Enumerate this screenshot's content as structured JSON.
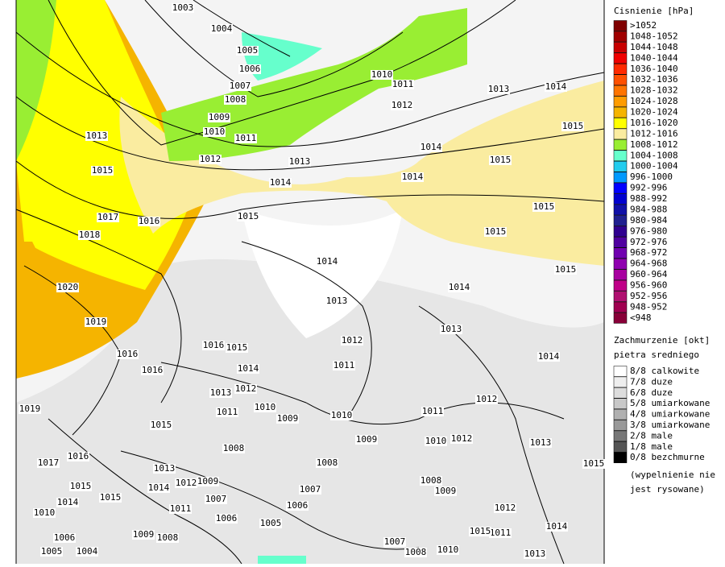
{
  "map": {
    "isobar_labels": [
      "1003",
      "1004",
      "1005",
      "1006",
      "1007",
      "1008",
      "1009",
      "1010",
      "1011",
      "1012",
      "1013",
      "1014",
      "1015",
      "1016",
      "1017",
      "1018",
      "1019",
      "1020",
      "1013",
      "1015",
      "1010",
      "1011",
      "1012",
      "1013",
      "1014",
      "1015",
      "1014",
      "1014",
      "1015",
      "1015",
      "1015",
      "1015",
      "1014",
      "1014",
      "1013",
      "1013",
      "1012",
      "1011",
      "1014",
      "1012",
      "1011",
      "1010",
      "1012",
      "1013",
      "1015",
      "1016",
      "1016",
      "1015",
      "1016",
      "1014",
      "1013",
      "1012",
      "1011",
      "1010",
      "1009",
      "1010",
      "1009",
      "1008",
      "1008",
      "1007",
      "1006",
      "1005",
      "1006",
      "1007",
      "1008",
      "1009",
      "1012",
      "1011",
      "1015",
      "1014",
      "1013",
      "1007",
      "1008",
      "1010",
      "1019",
      "1017",
      "1016",
      "1015",
      "1013",
      "1015",
      "1014",
      "1012",
      "1009",
      "1011",
      "1009",
      "1008",
      "1010",
      "1006",
      "1005",
      "1004",
      "1015",
      "1014"
    ]
  },
  "legend": {
    "pressure": {
      "title": "Cisnienie [hPa]",
      "items": [
        {
          "label": ">1052",
          "color": "#800000"
        },
        {
          "label": "1048-1052",
          "color": "#a00000"
        },
        {
          "label": "1044-1048",
          "color": "#c80000"
        },
        {
          "label": "1040-1044",
          "color": "#f00000"
        },
        {
          "label": "1036-1040",
          "color": "#ff2a00"
        },
        {
          "label": "1032-1036",
          "color": "#ff5000"
        },
        {
          "label": "1028-1032",
          "color": "#ff7400"
        },
        {
          "label": "1024-1028",
          "color": "#ff9c00"
        },
        {
          "label": "1020-1024",
          "color": "#f5b400"
        },
        {
          "label": "1016-1020",
          "color": "#ffff00"
        },
        {
          "label": "1012-1016",
          "color": "#faeca0"
        },
        {
          "label": "1008-1012",
          "color": "#99ee33"
        },
        {
          "label": "1004-1008",
          "color": "#66ffcc"
        },
        {
          "label": "1000-1004",
          "color": "#22ccee"
        },
        {
          "label": "996-1000",
          "color": "#0099ff"
        },
        {
          "label": "992-996",
          "color": "#0000ff"
        },
        {
          "label": "988-992",
          "color": "#0000d0"
        },
        {
          "label": "984-988",
          "color": "#1010a8"
        },
        {
          "label": "980-984",
          "color": "#202090"
        },
        {
          "label": "976-980",
          "color": "#300090"
        },
        {
          "label": "972-976",
          "color": "#5000a0"
        },
        {
          "label": "968-972",
          "color": "#7000b0"
        },
        {
          "label": "964-968",
          "color": "#9000b0"
        },
        {
          "label": "960-964",
          "color": "#a800a0"
        },
        {
          "label": "956-960",
          "color": "#c00088"
        },
        {
          "label": "952-956",
          "color": "#b01070"
        },
        {
          "label": "948-952",
          "color": "#a00050"
        },
        {
          "label": "<948",
          "color": "#880038"
        }
      ]
    },
    "clouds": {
      "title": "Zachmurzenie [okt]",
      "subtitle": "pietra sredniego",
      "items": [
        {
          "label": "8/8 calkowite",
          "color": "#ffffff"
        },
        {
          "label": "7/8 duze",
          "color": "#eeeeee"
        },
        {
          "label": "6/8 duze",
          "color": "#dddddd"
        },
        {
          "label": "5/8 umiarkowane",
          "color": "#c8c8c8"
        },
        {
          "label": "4/8 umiarkowane",
          "color": "#b0b0b0"
        },
        {
          "label": "3/8 umiarkowane",
          "color": "#999999"
        },
        {
          "label": "2/8 male",
          "color": "#777777"
        },
        {
          "label": "1/8 male",
          "color": "#555555"
        },
        {
          "label": "0/8 bezchmurne",
          "color": "#000000"
        }
      ],
      "note": [
        "(wypelnienie nie",
        "jest rysowane)"
      ]
    }
  }
}
